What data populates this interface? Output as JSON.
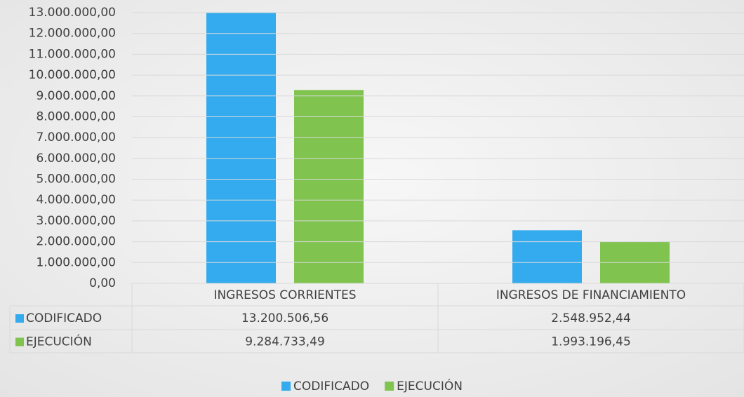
{
  "chart_data": {
    "type": "bar",
    "categories": [
      "INGRESOS CORRIENTES",
      "INGRESOS DE FINANCIAMIENTO"
    ],
    "series": [
      {
        "name": "CODIFICADO",
        "color": "#33abee",
        "values": [
          13200506.56,
          2548952.44
        ],
        "value_labels": [
          "13.200.506,56",
          "2.548.952,44"
        ]
      },
      {
        "name": "EJECUCIÓN",
        "color": "#80c34f",
        "values": [
          9284733.49,
          1993196.45
        ],
        "value_labels": [
          "9.284.733,49",
          "1.993.196,45"
        ]
      }
    ],
    "ylim": [
      0,
      13000000
    ],
    "yticks": [
      {
        "value": 0,
        "label": "0,00"
      },
      {
        "value": 1000000,
        "label": "1.000.000,00"
      },
      {
        "value": 2000000,
        "label": "2.000.000,00"
      },
      {
        "value": 3000000,
        "label": "3.000.000,00"
      },
      {
        "value": 4000000,
        "label": "4.000.000,00"
      },
      {
        "value": 5000000,
        "label": "5.000.000,00"
      },
      {
        "value": 6000000,
        "label": "6.000.000,00"
      },
      {
        "value": 7000000,
        "label": "7.000.000,00"
      },
      {
        "value": 8000000,
        "label": "8.000.000,00"
      },
      {
        "value": 9000000,
        "label": "9.000.000,00"
      },
      {
        "value": 10000000,
        "label": "10.000.000,00"
      },
      {
        "value": 11000000,
        "label": "11.000.000,00"
      },
      {
        "value": 12000000,
        "label": "12.000.000,00"
      },
      {
        "value": 13000000,
        "label": "13.000.000,00"
      }
    ],
    "grid": true,
    "legend": "bottom",
    "data_table": true
  }
}
